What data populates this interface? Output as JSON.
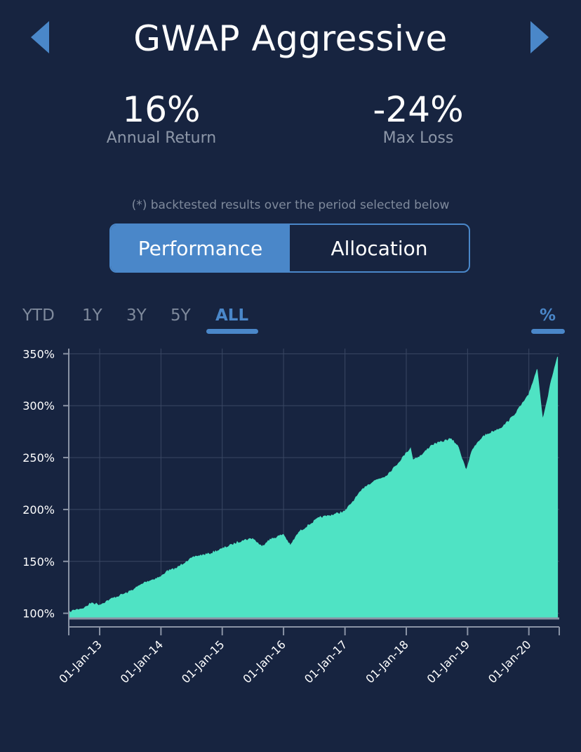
{
  "header": {
    "title": "GWAP Aggressive",
    "prev_icon": "triangle-left-icon",
    "next_icon": "triangle-right-icon"
  },
  "stats": {
    "annual_return": {
      "value": "16%",
      "label": "Annual Return"
    },
    "max_loss": {
      "value": "-24%",
      "label": "Max Loss"
    }
  },
  "note": "(*) backtested results over the period selected below",
  "tabs": [
    {
      "label": "Performance",
      "active": true
    },
    {
      "label": "Allocation",
      "active": false
    }
  ],
  "ranges": [
    "YTD",
    "1Y",
    "3Y",
    "5Y",
    "ALL"
  ],
  "selected_range": "ALL",
  "unit_toggle": "%",
  "colors": {
    "background": "#172440",
    "accent": "#4a87c9",
    "area": "#4fe3c4"
  },
  "chart_data": {
    "type": "area",
    "title": "",
    "xlabel": "",
    "ylabel": "",
    "ylim": [
      95,
      355
    ],
    "yticks": [
      100,
      150,
      200,
      250,
      300,
      350
    ],
    "ytick_labels": [
      "100%",
      "150%",
      "200%",
      "250%",
      "300%",
      "350%"
    ],
    "xticks": [
      "2013-01-01",
      "2014-01-01",
      "2015-01-01",
      "2016-01-01",
      "2017-01-01",
      "2018-01-01",
      "2019-01-01",
      "2020-01-01"
    ],
    "xtick_labels": [
      "01-Jan-13",
      "01-Jan-14",
      "01-Jan-15",
      "01-Jan-16",
      "01-Jan-17",
      "01-Jan-18",
      "01-Jan-19",
      "01-Jan-20"
    ],
    "xlim": [
      "2012-07-01",
      "2020-06-30"
    ],
    "grid": true,
    "legend": "none",
    "series": [
      {
        "x": [
          "2012-07-01",
          "2012-08-01",
          "2012-10-01",
          "2012-11-15",
          "2013-01-01",
          "2013-03-01",
          "2013-05-01",
          "2013-06-20",
          "2013-08-01",
          "2013-10-01",
          "2013-12-31",
          "2014-02-01",
          "2014-04-01",
          "2014-06-01",
          "2014-08-01",
          "2014-10-15",
          "2014-12-31",
          "2015-03-01",
          "2015-05-01",
          "2015-07-01",
          "2015-08-25",
          "2015-10-01",
          "2015-12-31",
          "2016-02-10",
          "2016-04-01",
          "2016-06-01",
          "2016-08-01",
          "2016-10-01",
          "2016-12-31",
          "2017-03-01",
          "2017-05-01",
          "2017-07-01",
          "2017-09-01",
          "2017-11-01",
          "2018-01-05",
          "2018-01-26",
          "2018-02-09",
          "2018-04-01",
          "2018-06-01",
          "2018-08-01",
          "2018-09-20",
          "2018-11-01",
          "2018-12-24",
          "2019-02-01",
          "2019-04-01",
          "2019-06-01",
          "2019-08-01",
          "2019-10-01",
          "2019-12-31",
          "2020-02-19",
          "2020-03-23",
          "2020-04-20",
          "2020-05-15",
          "2020-06-20"
        ],
        "values": [
          100,
          103,
          105,
          110,
          108,
          113,
          117,
          120,
          124,
          130,
          135,
          140,
          143,
          150,
          155,
          157,
          162,
          166,
          170,
          172,
          164,
          170,
          176,
          165,
          178,
          185,
          192,
          194,
          198,
          210,
          222,
          228,
          232,
          242,
          255,
          259,
          248,
          252,
          262,
          265,
          268,
          262,
          238,
          258,
          270,
          275,
          280,
          290,
          310,
          335,
          287,
          305,
          325,
          347
        ]
      }
    ]
  }
}
